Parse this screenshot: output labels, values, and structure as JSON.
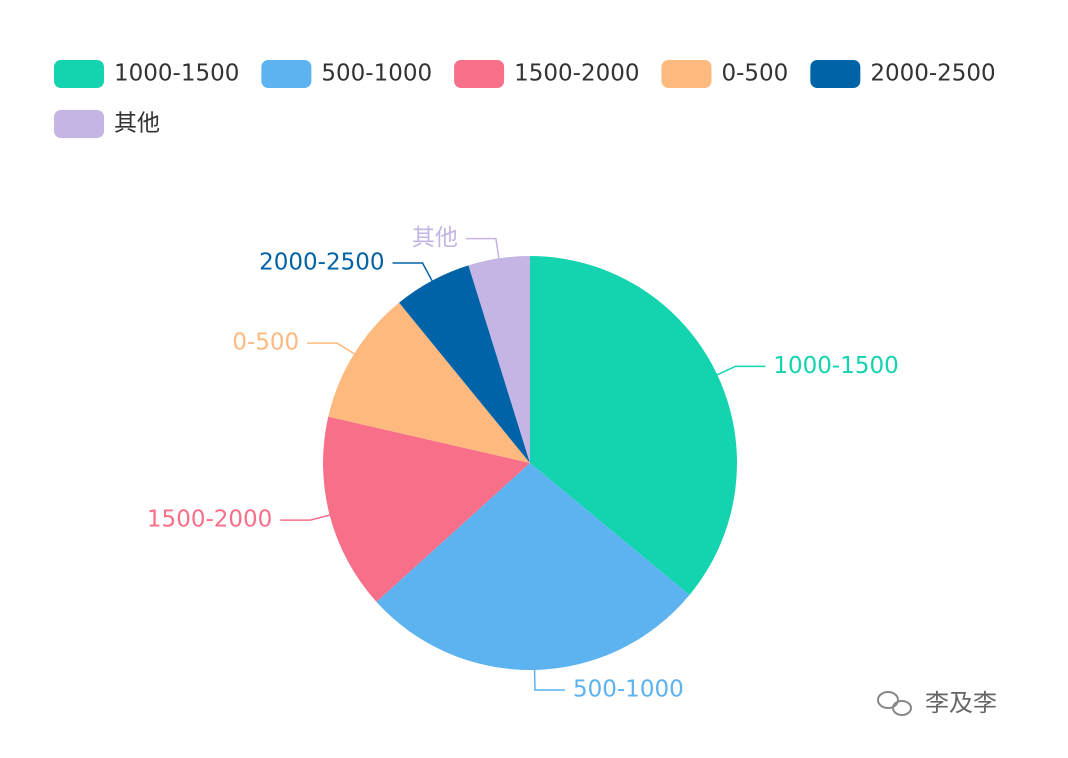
{
  "chart_data": {
    "type": "pie",
    "categories": [
      "1000-1500",
      "500-1000",
      "1500-2000",
      "0-500",
      "2000-2500",
      "其他"
    ],
    "values": [
      36,
      27.3,
      15.3,
      10.5,
      6.1,
      4.8
    ],
    "colors": [
      "#14d3af",
      "#5cb3ef",
      "#f86f8a",
      "#fdb97e",
      "#0063a7",
      "#c5b5e4"
    ],
    "legend": "top-left"
  },
  "watermark": "李及李"
}
